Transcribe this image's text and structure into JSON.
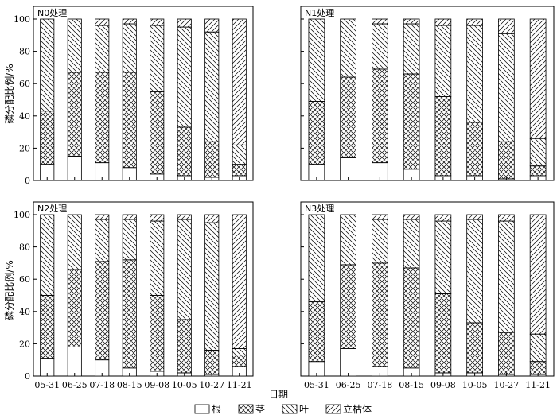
{
  "chart_data": {
    "type": "bar",
    "stacked": true,
    "normalized": true,
    "xlabel": "日期",
    "ylabel": "磷分配比例/%",
    "ylim": [
      0,
      100
    ],
    "yticks": [
      0,
      20,
      40,
      60,
      80,
      100
    ],
    "categories": [
      "05-31",
      "06-25",
      "07-18",
      "08-15",
      "09-08",
      "10-05",
      "10-27",
      "11-21"
    ],
    "legend": {
      "position": "bottom-center",
      "entries": [
        "根",
        "茎",
        "叶",
        "立枯体"
      ]
    },
    "series_patterns": {
      "根": "blank",
      "茎": "crosshatch",
      "叶": "back-diagonal",
      "立枯体": "forward-diagonal"
    },
    "panels": [
      {
        "label": "N0处理",
        "series": [
          {
            "name": "根",
            "values": [
              10,
              15,
              11,
              8,
              4,
              3,
              2,
              3
            ]
          },
          {
            "name": "茎",
            "values": [
              33,
              52,
              56,
              59,
              51,
              30,
              22,
              7
            ]
          },
          {
            "name": "叶",
            "values": [
              57,
              33,
              29,
              30,
              41,
              62,
              68,
              12
            ]
          },
          {
            "name": "立枯体",
            "values": [
              0,
              0,
              4,
              3,
              4,
              5,
              8,
              78
            ]
          }
        ]
      },
      {
        "label": "N1处理",
        "series": [
          {
            "name": "根",
            "values": [
              10,
              14,
              11,
              7,
              3,
              3,
              1,
              3
            ]
          },
          {
            "name": "茎",
            "values": [
              39,
              50,
              58,
              59,
              49,
              33,
              23,
              6
            ]
          },
          {
            "name": "叶",
            "values": [
              51,
              36,
              28,
              31,
              44,
              60,
              67,
              17
            ]
          },
          {
            "name": "立枯体",
            "values": [
              0,
              0,
              3,
              3,
              4,
              4,
              9,
              74
            ]
          }
        ]
      },
      {
        "label": "N2处理",
        "series": [
          {
            "name": "根",
            "values": [
              11,
              18,
              10,
              5,
              3,
              2,
              1,
              6
            ]
          },
          {
            "name": "茎",
            "values": [
              39,
              48,
              61,
              67,
              47,
              33,
              15,
              7
            ]
          },
          {
            "name": "叶",
            "values": [
              50,
              34,
              26,
              25,
              46,
              62,
              79,
              4
            ]
          },
          {
            "name": "立枯体",
            "values": [
              0,
              0,
              3,
              3,
              4,
              3,
              5,
              83
            ]
          }
        ]
      },
      {
        "label": "N3处理",
        "series": [
          {
            "name": "根",
            "values": [
              9,
              17,
              6,
              5,
              2,
              2,
              1,
              1
            ]
          },
          {
            "name": "茎",
            "values": [
              37,
              52,
              64,
              62,
              49,
              31,
              26,
              8
            ]
          },
          {
            "name": "叶",
            "values": [
              54,
              31,
              27,
              30,
              45,
              64,
              69,
              17
            ]
          },
          {
            "name": "立枯体",
            "values": [
              0,
              0,
              3,
              3,
              4,
              3,
              4,
              74
            ]
          }
        ]
      }
    ]
  }
}
